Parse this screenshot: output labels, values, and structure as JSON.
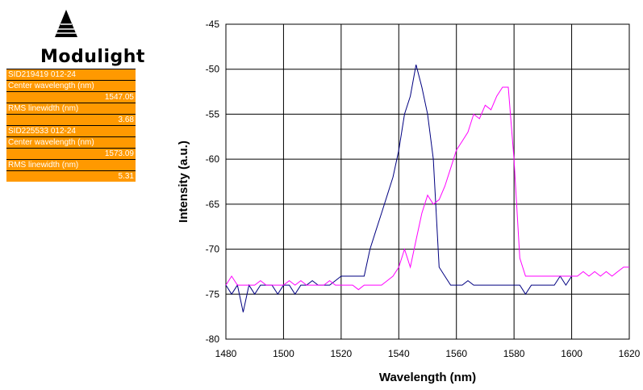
{
  "logo": {
    "text": "Modulight",
    "icon": "pyramid-logo-icon"
  },
  "info_rows": [
    {
      "text": "SID219419 012-24",
      "align": "left"
    },
    {
      "text": "Center wavelength (nm)",
      "align": "left"
    },
    {
      "text": "1547.05",
      "align": "right"
    },
    {
      "text": "RMS linewidth (nm)",
      "align": "left"
    },
    {
      "text": "3.68",
      "align": "right"
    },
    {
      "text": "SID225533 012-24",
      "align": "left"
    },
    {
      "text": "Center wavelength (nm)",
      "align": "left"
    },
    {
      "text": "1573.09",
      "align": "right"
    },
    {
      "text": "RMS linewidth (nm)",
      "align": "left"
    },
    {
      "text": "5.31",
      "align": "right"
    }
  ],
  "colors": {
    "accent": "#ff9900",
    "series1": "#000080",
    "series2": "#ff00ff"
  },
  "chart_data": {
    "type": "line",
    "xlabel": "Wavelength (nm)",
    "ylabel": "Intensity (a.u.)",
    "xlim": [
      1480,
      1620
    ],
    "ylim": [
      -80,
      -45
    ],
    "xticks": [
      1480,
      1500,
      1520,
      1540,
      1560,
      1580,
      1600,
      1620
    ],
    "yticks": [
      -45,
      -50,
      -55,
      -60,
      -65,
      -70,
      -75,
      -80
    ],
    "grid": true,
    "legend": "none",
    "series": [
      {
        "color": "#000080",
        "x": [
          1480,
          1482,
          1484,
          1486,
          1488,
          1490,
          1492,
          1494,
          1496,
          1498,
          1500,
          1502,
          1504,
          1506,
          1508,
          1510,
          1512,
          1514,
          1516,
          1518,
          1520,
          1522,
          1524,
          1526,
          1528,
          1530,
          1532,
          1534,
          1536,
          1538,
          1540,
          1542,
          1544,
          1546,
          1548,
          1550,
          1552,
          1554,
          1556,
          1558,
          1560,
          1562,
          1564,
          1566,
          1568,
          1570,
          1572,
          1574,
          1576,
          1578,
          1580,
          1582,
          1584,
          1586,
          1588,
          1590,
          1592,
          1594,
          1596,
          1598,
          1600
        ],
        "y": [
          -74,
          -75,
          -74,
          -77,
          -74,
          -75,
          -74,
          -74,
          -74,
          -75,
          -74,
          -74,
          -75,
          -74,
          -74,
          -73.5,
          -74,
          -74,
          -74,
          -73.5,
          -73,
          -73,
          -73,
          -73,
          -73,
          -70,
          -68,
          -66,
          -64,
          -62,
          -59,
          -55,
          -53,
          -49.5,
          -52,
          -55,
          -60,
          -72,
          -73,
          -74,
          -74,
          -74,
          -73.5,
          -74,
          -74,
          -74,
          -74,
          -74,
          -74,
          -74,
          -74,
          -74,
          -75,
          -74,
          -74,
          -74,
          -74,
          -74,
          -73,
          -74,
          -73
        ]
      },
      {
        "color": "#ff00ff",
        "x": [
          1480,
          1482,
          1484,
          1486,
          1488,
          1490,
          1492,
          1494,
          1496,
          1498,
          1500,
          1502,
          1504,
          1506,
          1508,
          1510,
          1512,
          1514,
          1516,
          1518,
          1520,
          1522,
          1524,
          1526,
          1528,
          1530,
          1532,
          1534,
          1536,
          1538,
          1540,
          1542,
          1544,
          1546,
          1548,
          1550,
          1552,
          1554,
          1556,
          1558,
          1560,
          1562,
          1564,
          1566,
          1568,
          1570,
          1572,
          1574,
          1576,
          1578,
          1580,
          1582,
          1584,
          1586,
          1588,
          1590,
          1592,
          1594,
          1596,
          1598,
          1600,
          1602,
          1604,
          1606,
          1608,
          1610,
          1612,
          1614,
          1616,
          1618,
          1620
        ],
        "y": [
          -74,
          -73,
          -74,
          -74,
          -74,
          -74,
          -73.5,
          -74,
          -74,
          -74,
          -74,
          -73.5,
          -74,
          -73.5,
          -74,
          -74,
          -74,
          -74,
          -73.5,
          -74,
          -74,
          -74,
          -74,
          -74.5,
          -74,
          -74,
          -74,
          -74,
          -73.5,
          -73,
          -72,
          -70,
          -72,
          -69,
          -66,
          -64,
          -65,
          -64.5,
          -63,
          -61,
          -59,
          -58,
          -57,
          -55,
          -55.5,
          -54,
          -54.5,
          -53,
          -52,
          -52,
          -60,
          -71,
          -73,
          -73,
          -73,
          -73,
          -73,
          -73,
          -73,
          -73,
          -73,
          -73,
          -72.5,
          -73,
          -72.5,
          -73,
          -72.5,
          -73,
          -72.5,
          -72,
          -72
        ]
      }
    ]
  }
}
